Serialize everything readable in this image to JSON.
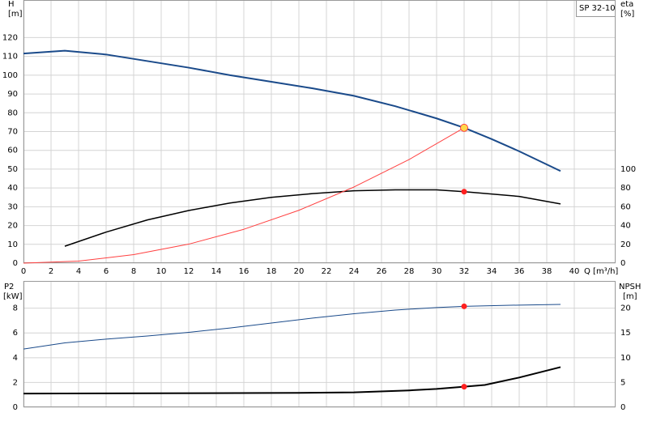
{
  "chart_data": [
    {
      "type": "line",
      "title": "SP 32-10",
      "xlabel": "Q [m³/h]",
      "ylabel": "H",
      "yunit": "[m]",
      "y2label": "eta",
      "y2unit": "[%]",
      "xlim": [
        0,
        43
      ],
      "xticks": [
        0,
        2,
        4,
        6,
        8,
        10,
        12,
        14,
        16,
        18,
        20,
        22,
        24,
        26,
        28,
        30,
        32,
        34,
        36,
        38,
        40
      ],
      "xticklabels": true,
      "ylim": [
        0,
        140
      ],
      "yticks": [
        0,
        10,
        20,
        30,
        40,
        50,
        60,
        70,
        80,
        90,
        100,
        110,
        120
      ],
      "y2lim": [
        0,
        280
      ],
      "y2ticks": [
        0,
        20,
        40,
        60,
        80,
        100
      ],
      "grid": true,
      "series": [
        {
          "color": "#1a4a8a",
          "width": 2,
          "axis": "y",
          "x": [
            0,
            3,
            6,
            9,
            12,
            15,
            18,
            21,
            24,
            27,
            30,
            32,
            34,
            36,
            39
          ],
          "values": [
            111.5,
            113,
            111,
            107.5,
            104,
            100,
            96.5,
            93,
            89,
            83.5,
            77,
            72,
            66,
            59.5,
            49
          ]
        },
        {
          "color": "#000000",
          "width": 1.5,
          "axis": "y2",
          "x": [
            3,
            6,
            9,
            12,
            15,
            18,
            21,
            24,
            27,
            30,
            32,
            36,
            39
          ],
          "values": [
            18,
            33,
            46,
            56,
            64,
            70,
            74,
            77,
            78,
            78,
            76,
            71,
            63
          ]
        },
        {
          "color": "#ff4040",
          "width": 1,
          "axis": "y",
          "x": [
            0,
            4,
            8,
            12,
            16,
            20,
            24,
            28,
            32
          ],
          "values": [
            0,
            1.1,
            4.5,
            10.1,
            18,
            28.1,
            40.5,
            55.1,
            72
          ]
        }
      ],
      "duty_points": [
        {
          "x": 32,
          "value": 72,
          "axis": "y",
          "color": "#ffd84a",
          "edge": "#ff4040",
          "size": 4.5
        },
        {
          "x": 32,
          "value": 76,
          "axis": "y2",
          "color": "#ff2020",
          "edge": "#ff2020",
          "size": 3
        }
      ]
    },
    {
      "type": "line",
      "ylabel": "P2",
      "yunit": "[kW]",
      "y2label": "NPSH",
      "y2unit": "[m]",
      "xlim": [
        0,
        43
      ],
      "xticks": [
        0,
        2,
        4,
        6,
        8,
        10,
        12,
        14,
        16,
        18,
        20,
        22,
        24,
        26,
        28,
        30,
        32,
        34,
        36,
        38,
        40
      ],
      "xticklabels": false,
      "ylim": [
        0,
        10.2
      ],
      "yticks": [
        0,
        2,
        4,
        6,
        8
      ],
      "y2lim": [
        0,
        25.5
      ],
      "y2ticks": [
        0,
        5,
        10,
        15,
        20
      ],
      "grid": true,
      "series": [
        {
          "color": "#1a4a8a",
          "width": 1,
          "axis": "y",
          "x": [
            0,
            3,
            6,
            9,
            12,
            15,
            18,
            21,
            24,
            27,
            30,
            32,
            36,
            39
          ],
          "values": [
            4.7,
            5.2,
            5.5,
            5.75,
            6.05,
            6.4,
            6.8,
            7.2,
            7.55,
            7.85,
            8.05,
            8.15,
            8.25,
            8.3
          ]
        },
        {
          "color": "#000000",
          "width": 2,
          "axis": "y2",
          "x": [
            0,
            20,
            24,
            28,
            30,
            32,
            33.5,
            36,
            39
          ],
          "values": [
            2.75,
            2.9,
            3.0,
            3.4,
            3.7,
            4.15,
            4.5,
            6.0,
            8.1
          ]
        }
      ],
      "duty_points": [
        {
          "x": 32,
          "value": 8.15,
          "axis": "y",
          "color": "#ff2020",
          "edge": "#ff2020",
          "size": 3
        },
        {
          "x": 32,
          "value": 4.15,
          "axis": "y2",
          "color": "#ff2020",
          "edge": "#ff2020",
          "size": 3
        }
      ]
    }
  ]
}
